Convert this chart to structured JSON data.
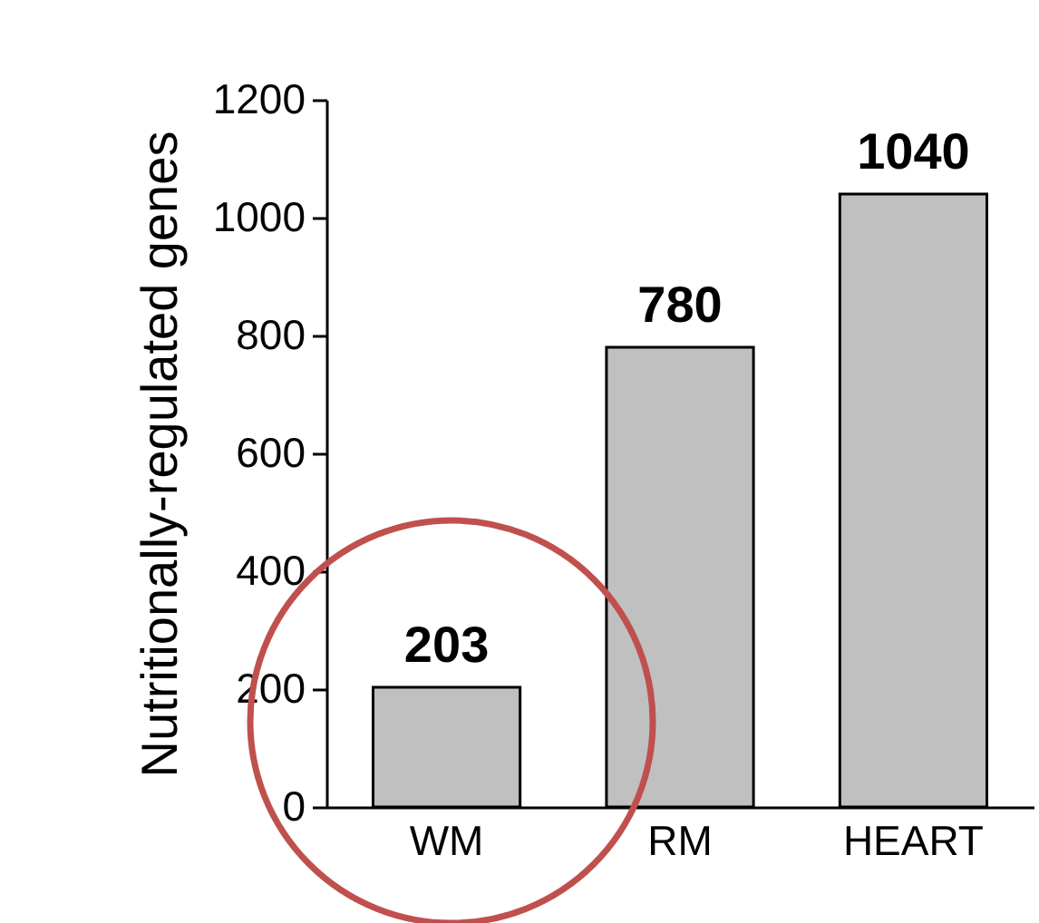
{
  "chart_data": {
    "type": "bar",
    "ylabel": "Nutritionally-regulated genes",
    "categories": [
      "WM",
      "RM",
      "HEART"
    ],
    "values": [
      203,
      780,
      1040
    ],
    "color": "#c0c0c0",
    "ylim": [
      0,
      1200
    ],
    "yticks": [
      0,
      200,
      400,
      600,
      800,
      1000,
      1200
    ],
    "data_labels": true,
    "grid": false
  }
}
